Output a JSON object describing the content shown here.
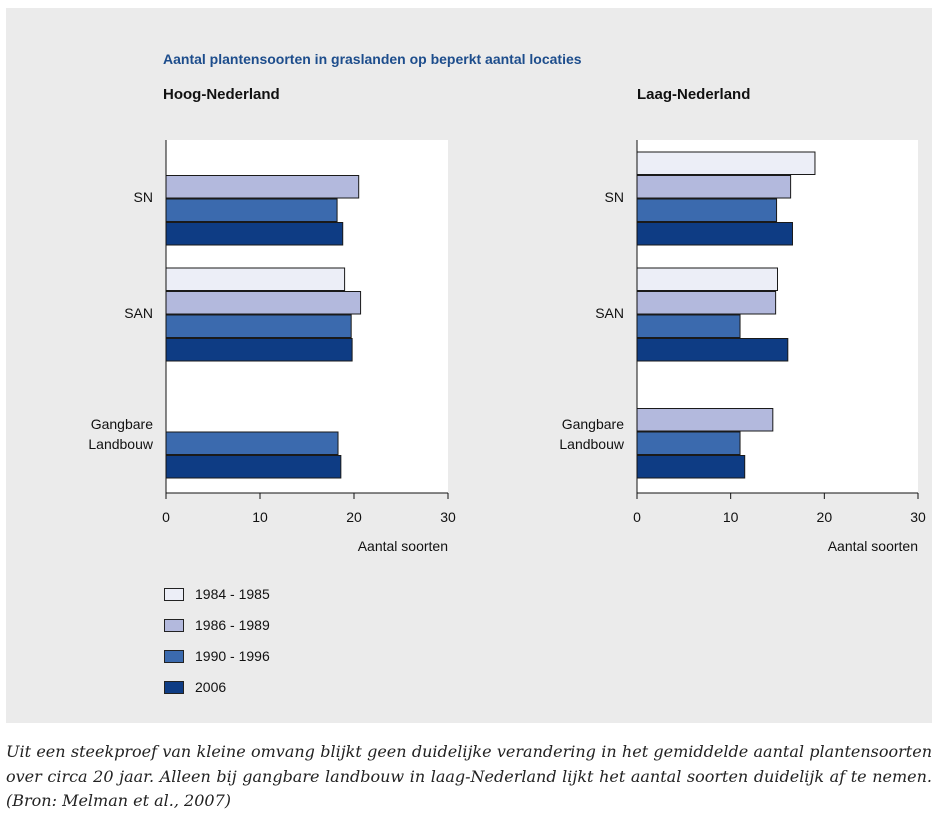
{
  "figure_title": "Aantal plantensoorten in graslanden op beperkt aantal locaties",
  "caption": "Uit een steekproef van kleine omvang blijkt geen duidelijke verandering in het gemiddelde aantal plantensoorten over circa 20 jaar. Alleen bij gangbare landbouw in laag-Nederland lijkt het aantal soorten duidelijk af te nemen. (Bron: Melman et al., 2007)",
  "colors": {
    "1984 - 1985": "#eceef7",
    "1986 - 1989": "#b3b9dd",
    "1990 - 1996": "#3b6aae",
    "2006": "#0e3c84"
  },
  "legend": [
    "1984 - 1985",
    "1986 - 1989",
    "1990 - 1996",
    "2006"
  ],
  "chart_data": [
    {
      "type": "bar",
      "orientation": "horizontal",
      "title": "Hoog-Nederland",
      "xlabel": "Aantal soorten",
      "xlim": [
        0,
        30
      ],
      "xticks": [
        0,
        10,
        20,
        30
      ],
      "categories": [
        [
          "SN"
        ],
        [
          "SAN"
        ],
        [
          "Gangbare",
          "Landbouw"
        ]
      ],
      "series": [
        {
          "name": "1984 - 1985",
          "values": [
            null,
            19.0,
            null
          ]
        },
        {
          "name": "1986 - 1989",
          "values": [
            20.5,
            20.7,
            null
          ]
        },
        {
          "name": "1990 - 1996",
          "values": [
            18.2,
            19.7,
            18.3
          ]
        },
        {
          "name": "2006",
          "values": [
            18.8,
            19.8,
            18.6
          ]
        }
      ]
    },
    {
      "type": "bar",
      "orientation": "horizontal",
      "title": "Laag-Nederland",
      "xlabel": "Aantal soorten",
      "xlim": [
        0,
        30
      ],
      "xticks": [
        0,
        10,
        20,
        30
      ],
      "categories": [
        [
          "SN"
        ],
        [
          "SAN"
        ],
        [
          "Gangbare",
          "Landbouw"
        ]
      ],
      "series": [
        {
          "name": "1984 - 1985",
          "values": [
            19.0,
            15.0,
            null
          ]
        },
        {
          "name": "1986 - 1989",
          "values": [
            16.4,
            14.8,
            14.5
          ]
        },
        {
          "name": "1990 - 1996",
          "values": [
            14.9,
            11.0,
            11.0
          ]
        },
        {
          "name": "2006",
          "values": [
            16.6,
            16.1,
            11.5
          ]
        }
      ]
    }
  ]
}
